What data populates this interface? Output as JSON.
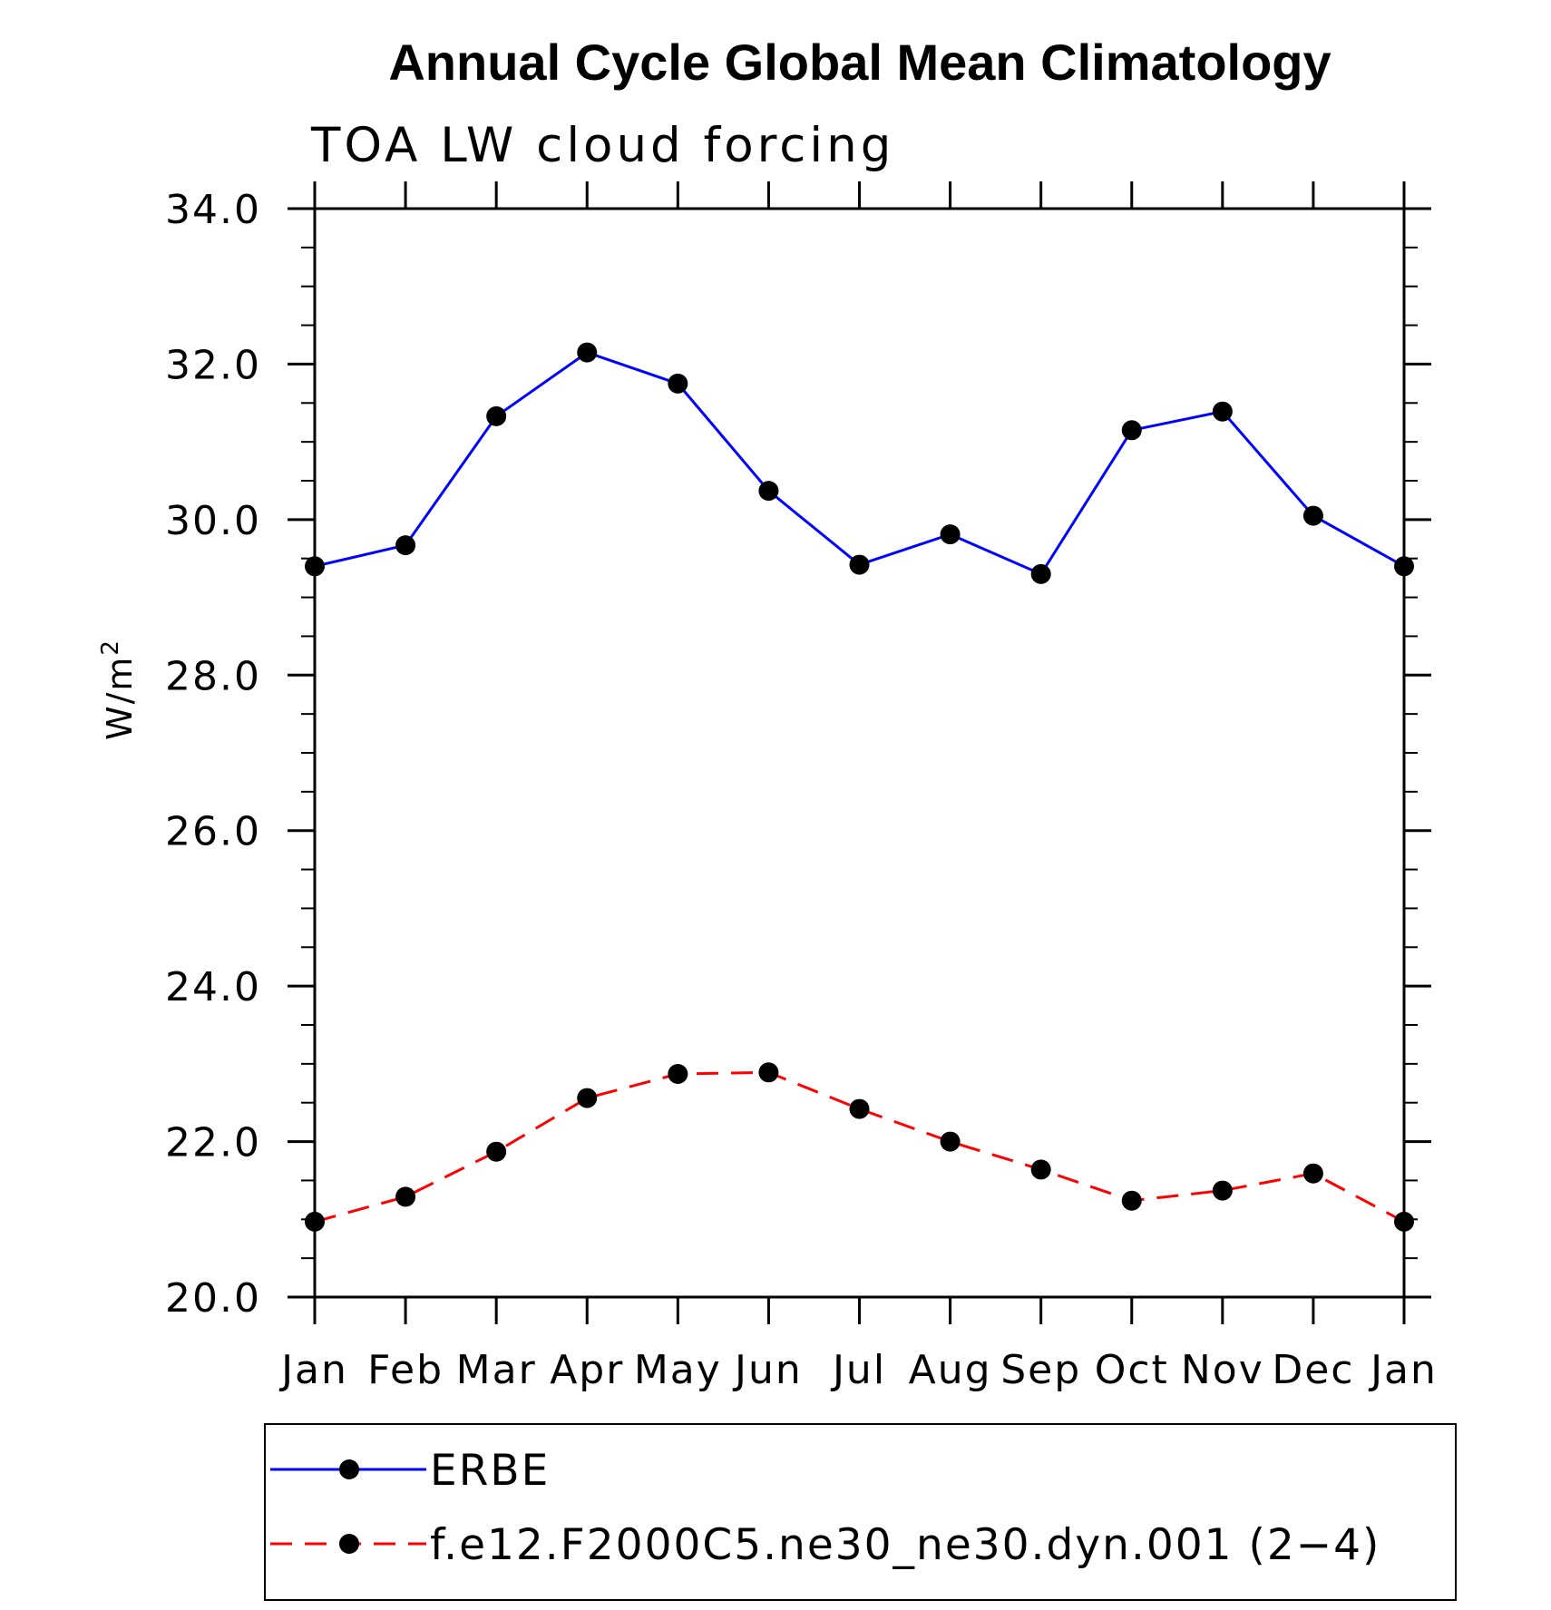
{
  "chart_data": {
    "type": "line",
    "title": "Annual Cycle Global Mean Climatology",
    "subtitle": "TOA LW cloud forcing",
    "ylabel": "W/m",
    "ylabel_superscript": "2",
    "xlabel": "",
    "ylim": [
      20.0,
      34.0
    ],
    "y_ticks": [
      "20.0",
      "22.0",
      "24.0",
      "26.0",
      "28.0",
      "30.0",
      "32.0",
      "34.0"
    ],
    "y_tick_values": [
      20,
      22,
      24,
      26,
      28,
      30,
      32,
      34
    ],
    "categories": [
      "Jan",
      "Feb",
      "Mar",
      "Apr",
      "May",
      "Jun",
      "Jul",
      "Aug",
      "Sep",
      "Oct",
      "Nov",
      "Dec",
      "Jan"
    ],
    "grid": false,
    "legend_position": "bottom",
    "series": [
      {
        "name": "ERBE",
        "color": "#0000ff",
        "dash": "solid",
        "values": [
          29.4,
          29.67,
          31.33,
          32.15,
          31.75,
          30.37,
          29.42,
          29.81,
          29.3,
          31.15,
          31.39,
          30.05,
          29.4
        ]
      },
      {
        "name": "f.e12.F2000C5.ne30_ne30.dyn.001 (2−4)",
        "color": "#ff0000",
        "dash": "dashed",
        "values": [
          20.97,
          21.29,
          21.87,
          22.56,
          22.87,
          22.89,
          22.42,
          22.0,
          21.64,
          21.24,
          21.37,
          21.59,
          20.97
        ]
      }
    ]
  }
}
